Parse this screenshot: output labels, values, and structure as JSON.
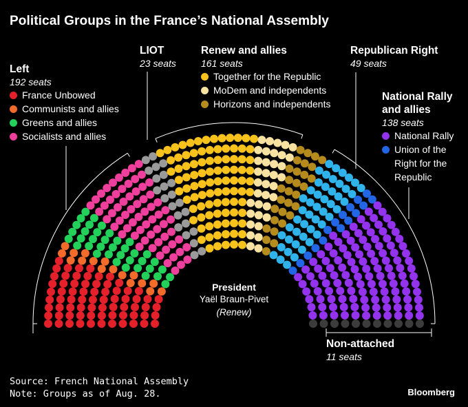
{
  "chart_data": {
    "type": "parliament",
    "title": "Political Groups in the France’s National Assembly",
    "total_seats": 577,
    "groups": [
      {
        "name": "Left",
        "seats_label": "192 seats",
        "seats": 192
      },
      {
        "name": "LIOT",
        "seats_label": "23 seats",
        "seats": 23
      },
      {
        "name": "Renew and allies",
        "seats_label": "161 seats",
        "seats": 161
      },
      {
        "name": "Republican Right",
        "seats_label": "49 seats",
        "seats": 49
      },
      {
        "name": "National Rally and allies",
        "seats_label": "138 seats",
        "seats": 138
      },
      {
        "name": "Non-attached",
        "seats_label": "11 seats",
        "seats": 11
      }
    ],
    "series": [
      {
        "name": "France Unbowed",
        "group": "Left",
        "seats": 71,
        "color": "#e4202a"
      },
      {
        "name": "Communists and allies",
        "group": "Left",
        "seats": 17,
        "color": "#f26b2a"
      },
      {
        "name": "Greens and allies",
        "group": "Left",
        "seats": 38,
        "color": "#22d05a"
      },
      {
        "name": "Socialists and allies",
        "group": "Left",
        "seats": 66,
        "color": "#ee3f9c"
      },
      {
        "name": "LIOT",
        "group": "LIOT",
        "seats": 23,
        "color": "#9a9a9a"
      },
      {
        "name": "Together for the Republic",
        "group": "Renew and allies",
        "seats": 95,
        "color": "#f7c21b"
      },
      {
        "name": "MoDem and independents",
        "group": "Renew and allies",
        "seats": 36,
        "color": "#f7e2a1"
      },
      {
        "name": "Horizons and independents",
        "group": "Renew and allies",
        "seats": 30,
        "color": "#b68b1d"
      },
      {
        "name": "Republican Right",
        "group": "Republican Right",
        "seats": 49,
        "color": "#2fb3ea"
      },
      {
        "name": "Union of the Right for the Republic",
        "group": "National Rally and allies",
        "seats": 16,
        "color": "#2266e6"
      },
      {
        "name": "National Rally",
        "group": "National Rally and allies",
        "seats": 122,
        "color": "#9333ee"
      },
      {
        "name": "Non-attached",
        "group": "Non-attached",
        "seats": 11,
        "color": "#3c3c3c"
      }
    ]
  },
  "labels": {
    "left": {
      "name": "Left",
      "seats": "192 seats",
      "items": [
        "France Unbowed",
        "Communists and allies",
        "Greens and allies",
        "Socialists and allies"
      ]
    },
    "liot": {
      "name": "LIOT",
      "seats": "23 seats"
    },
    "renew": {
      "name": "Renew and allies",
      "seats": "161 seats",
      "items": [
        "Together for the Republic",
        "MoDem and independents",
        "Horizons and independents"
      ]
    },
    "republican": {
      "name": "Republican Right",
      "seats": "49 seats"
    },
    "rally": {
      "name_line1": "National Rally",
      "name_line2": "and allies",
      "seats": "138 seats",
      "items": [
        "National Rally",
        "Union of the",
        "Right for the",
        "Republic"
      ]
    },
    "nonattached": {
      "name": "Non-attached",
      "seats": "11 seats"
    }
  },
  "legend_colors": {
    "france_unbowed": "#e4202a",
    "communists": "#f26b2a",
    "greens": "#22d05a",
    "socialists": "#ee3f9c",
    "together": "#f7c21b",
    "modem": "#f7e2a1",
    "horizons": "#b68b1d",
    "national_rally": "#9333ee",
    "union_right": "#2266e6"
  },
  "president": {
    "heading": "President",
    "name": "Yaël Braun-Pivet",
    "party": "(Renew)"
  },
  "footer": {
    "source": "Source: French National Assembly",
    "note": "Note: Groups as of Aug. 28.",
    "brand": "Bloomberg"
  }
}
